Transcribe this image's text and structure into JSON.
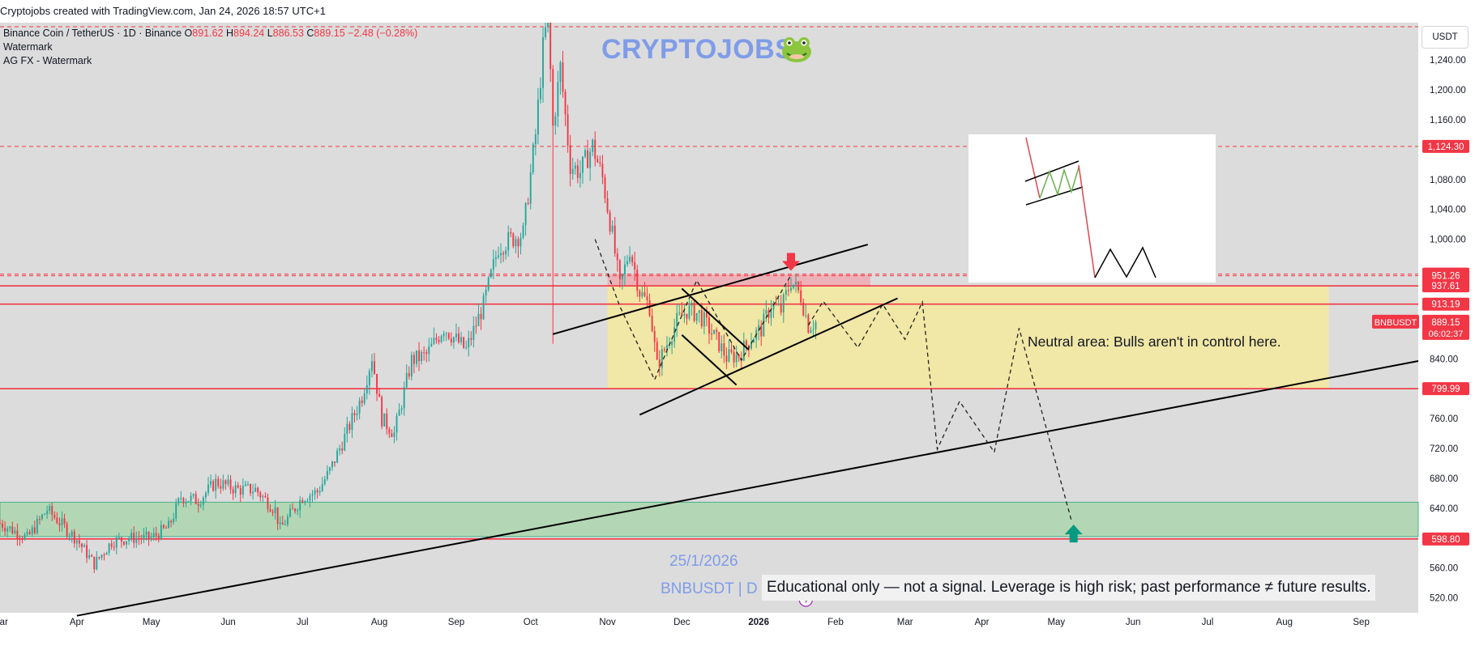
{
  "header": {
    "attribution": "Cryptojobs created with TradingView.com, Jan 24, 2026 18:57 UTC+1"
  },
  "legend": {
    "title": "Binance Coin / TetherUS · 1D · Binance",
    "open_label": "O",
    "open": "891.62",
    "high_label": "H",
    "high": "894.24",
    "low_label": "L",
    "low": "886.53",
    "close_label": "C",
    "close": "889.15",
    "change": "−2.48 (−0.28%)",
    "indicators": [
      "Watermark",
      "AG FX - Watermark"
    ]
  },
  "watermark": {
    "brand": "CRYPTOJOBS"
  },
  "currency_button": "USDT",
  "annotations": {
    "neutral_area": "Neutral area: Bulls aren't in control here.",
    "date": "25/1/2026",
    "symbol_tag": "BNBUSDT | D",
    "disclaimer": "Educational only — not a signal. Leverage is high risk; past performance ≠ future results."
  },
  "colors": {
    "up": "#26a69a",
    "down": "#f23645",
    "level": "#f23645",
    "neutral_zone": "#f3e8a0",
    "support_zone": "#a5d6a7",
    "resistance_zone": "#f4a0a6",
    "pane": "#dcdcdc",
    "watermark": "#7f9ce8"
  },
  "chart_data": {
    "type": "candlestick",
    "symbol": "BNBUSDT",
    "interval": "1D",
    "ylim": [
      500,
      1290
    ],
    "y_ticks": [
      520,
      560,
      600,
      640,
      680,
      720,
      760,
      800,
      840,
      880,
      920,
      960,
      1000,
      1040,
      1080,
      1120,
      1160,
      1200,
      1240
    ],
    "y_tick_labels": [
      "520.00",
      "560.00",
      "",
      "640.00",
      "680.00",
      "720.00",
      "760.00",
      "",
      "840.00",
      "",
      "",
      "",
      "1,000.00",
      "1,040.00",
      "1,080.00",
      "",
      "1,160.00",
      "1,200.00",
      "1,240.00"
    ],
    "x_ticks": [
      {
        "date": "2025-03-01",
        "label": "Mar"
      },
      {
        "date": "2025-04-01",
        "label": "Apr"
      },
      {
        "date": "2025-05-01",
        "label": "May"
      },
      {
        "date": "2025-06-01",
        "label": "Jun"
      },
      {
        "date": "2025-07-01",
        "label": "Jul"
      },
      {
        "date": "2025-08-01",
        "label": "Aug"
      },
      {
        "date": "2025-09-01",
        "label": "Sep"
      },
      {
        "date": "2025-10-01",
        "label": "Oct"
      },
      {
        "date": "2025-11-01",
        "label": "Nov"
      },
      {
        "date": "2025-12-01",
        "label": "Dec"
      },
      {
        "date": "2026-01-01",
        "label": "2026"
      },
      {
        "date": "2026-02-01",
        "label": "Feb"
      },
      {
        "date": "2026-03-01",
        "label": "Mar"
      },
      {
        "date": "2026-04-01",
        "label": "Apr"
      },
      {
        "date": "2026-05-01",
        "label": "May"
      },
      {
        "date": "2026-06-01",
        "label": "Jun"
      },
      {
        "date": "2026-07-01",
        "label": "Jul"
      },
      {
        "date": "2026-08-01",
        "label": "Aug"
      },
      {
        "date": "2026-09-01",
        "label": "Sep"
      }
    ],
    "x_range": [
      "2025-03-01",
      "2026-09-24"
    ],
    "price_path": [
      [
        "2025-03-01",
        620
      ],
      [
        "2025-03-12",
        600
      ],
      [
        "2025-03-20",
        638
      ],
      [
        "2025-04-01",
        598
      ],
      [
        "2025-04-08",
        565
      ],
      [
        "2025-04-15",
        595
      ],
      [
        "2025-04-22",
        600
      ],
      [
        "2025-05-01",
        600
      ],
      [
        "2025-05-08",
        615
      ],
      [
        "2025-05-13",
        655
      ],
      [
        "2025-05-20",
        650
      ],
      [
        "2025-05-27",
        675
      ],
      [
        "2025-06-05",
        665
      ],
      [
        "2025-06-12",
        665
      ],
      [
        "2025-06-20",
        638
      ],
      [
        "2025-06-22",
        612
      ],
      [
        "2025-07-01",
        655
      ],
      [
        "2025-07-07",
        662
      ],
      [
        "2025-07-12",
        690
      ],
      [
        "2025-07-18",
        735
      ],
      [
        "2025-07-25",
        790
      ],
      [
        "2025-07-29",
        843
      ],
      [
        "2025-08-02",
        760
      ],
      [
        "2025-08-07",
        740
      ],
      [
        "2025-08-14",
        838
      ],
      [
        "2025-08-20",
        845
      ],
      [
        "2025-08-27",
        882
      ],
      [
        "2025-09-05",
        852
      ],
      [
        "2025-09-12",
        912
      ],
      [
        "2025-09-18",
        990
      ],
      [
        "2025-09-23",
        1000
      ],
      [
        "2025-09-28",
        1008
      ],
      [
        "2025-10-03",
        1140
      ],
      [
        "2025-10-06",
        1255
      ],
      [
        "2025-10-08",
        1300
      ],
      [
        "2025-10-10",
        1150
      ],
      [
        "2025-10-13",
        1230
      ],
      [
        "2025-10-17",
        1100
      ],
      [
        "2025-10-21",
        1090
      ],
      [
        "2025-10-26",
        1125
      ],
      [
        "2025-10-30",
        1082
      ],
      [
        "2025-11-03",
        1005
      ],
      [
        "2025-11-06",
        935
      ],
      [
        "2025-11-10",
        988
      ],
      [
        "2025-11-14",
        930
      ],
      [
        "2025-11-18",
        910
      ],
      [
        "2025-11-21",
        830
      ],
      [
        "2025-11-25",
        860
      ],
      [
        "2025-11-29",
        890
      ],
      [
        "2025-12-03",
        905
      ],
      [
        "2025-12-08",
        900
      ],
      [
        "2025-12-12",
        880
      ],
      [
        "2025-12-16",
        860
      ],
      [
        "2025-12-19",
        842
      ],
      [
        "2025-12-24",
        845
      ],
      [
        "2025-12-29",
        868
      ],
      [
        "2026-01-02",
        880
      ],
      [
        "2026-01-06",
        912
      ],
      [
        "2026-01-10",
        905
      ],
      [
        "2026-01-14",
        945
      ],
      [
        "2026-01-18",
        924
      ],
      [
        "2026-01-21",
        885
      ],
      [
        "2026-01-24",
        889
      ]
    ],
    "last": {
      "open": 891.62,
      "high": 894.24,
      "low": 886.53,
      "close": 889.15
    },
    "price_labels": [
      {
        "value": 1124.3,
        "label": "1,124.30",
        "style": "dashed"
      },
      {
        "value": 953.35,
        "label": "953.35",
        "style": "dashed"
      },
      {
        "value": 951.26,
        "label": "951.26",
        "style": "dashed"
      },
      {
        "value": 937.61,
        "label": "937.61",
        "style": "solid"
      },
      {
        "value": 913.19,
        "label": "913.19",
        "style": "solid"
      },
      {
        "value": 799.99,
        "label": "799.99",
        "style": "solid"
      },
      {
        "value": 598.8,
        "label": "598.80",
        "style": "solid"
      }
    ],
    "last_price_label": {
      "symbol": "BNBUSDT",
      "value": "889.15",
      "countdown": "06:02:37"
    },
    "zones": [
      {
        "name": "neutral",
        "from": "2025-11-01",
        "to": "2026-08-19",
        "low": 800,
        "high": 938
      },
      {
        "name": "resistance",
        "from": "2025-11-01",
        "to": "2026-02-15",
        "low": 938,
        "high": 953
      },
      {
        "name": "support",
        "from": "2025-03-01",
        "to": "2026-09-24",
        "low": 602,
        "high": 648
      }
    ],
    "trendlines": [
      {
        "name": "long-term-support",
        "from": [
          "2025-04-01",
          496
        ],
        "to": [
          "2026-09-24",
          837
        ]
      },
      {
        "name": "pennant-upper",
        "from": [
          "2025-10-10",
          873
        ],
        "to": [
          "2026-02-14",
          993
        ]
      },
      {
        "name": "pennant-lower",
        "from": [
          "2025-11-14",
          765
        ],
        "to": [
          "2026-02-26",
          921
        ]
      },
      {
        "name": "flag-top",
        "from": [
          "2025-12-01",
          934
        ],
        "to": [
          "2025-12-28",
          852
        ]
      },
      {
        "name": "flag-bottom",
        "from": [
          "2025-12-01",
          872
        ],
        "to": [
          "2025-12-23",
          805
        ]
      }
    ],
    "projection": [
      [
        "2026-01-21",
        885
      ],
      [
        "2026-01-27",
        917
      ],
      [
        "2026-02-10",
        855
      ],
      [
        "2026-02-20",
        913
      ],
      [
        "2026-03-01",
        866
      ],
      [
        "2026-03-08",
        916
      ],
      [
        "2026-03-14",
        719
      ],
      [
        "2026-03-23",
        783
      ],
      [
        "2026-04-06",
        715
      ],
      [
        "2026-04-16",
        881
      ],
      [
        "2026-05-07",
        625
      ]
    ],
    "past_path_dashed": [
      [
        "2025-10-27",
        1000
      ],
      [
        "2025-11-06",
        910
      ],
      [
        "2025-11-20",
        812
      ],
      [
        "2025-12-07",
        945
      ],
      [
        "2025-12-25",
        838
      ],
      [
        "2026-01-14",
        952
      ]
    ],
    "markers": [
      {
        "type": "arrow-down",
        "date": "2026-01-14",
        "value": 960
      },
      {
        "type": "arrow-up",
        "date": "2026-05-08",
        "value": 605
      }
    ]
  }
}
